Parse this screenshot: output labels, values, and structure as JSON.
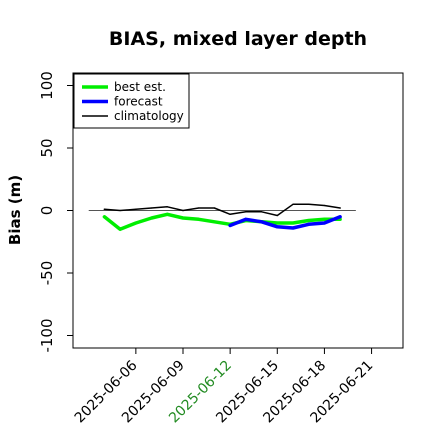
{
  "chart_data": {
    "type": "line",
    "title": "BIAS, mixed layer depth",
    "xlabel": "",
    "ylabel": "Bias (m)",
    "ylim": [
      -110,
      110
    ],
    "xlim": [
      "2025-06-02",
      "2025-06-23"
    ],
    "yticks": [
      -100,
      -50,
      0,
      50,
      100
    ],
    "yticklabels": [
      "-100",
      "-50",
      "0",
      "50",
      "100"
    ],
    "xticks": [
      "2025-06-06",
      "2025-06-09",
      "2025-06-12",
      "2025-06-15",
      "2025-06-18",
      "2025-06-21"
    ],
    "xticklabels": [
      "2025-06-06",
      "2025-06-09",
      "2025-06-12",
      "2025-06-15",
      "2025-06-18",
      "2025-06-21"
    ],
    "xtick_colors": [
      "#000000",
      "#000000",
      "#228b22",
      "#000000",
      "#000000",
      "#000000"
    ],
    "reference_line": 0,
    "grid": false,
    "legend": "top-left",
    "series": [
      {
        "name": "best est.",
        "color": "#00ee00",
        "x": [
          "2025-06-04",
          "2025-06-05",
          "2025-06-06",
          "2025-06-07",
          "2025-06-08",
          "2025-06-09",
          "2025-06-10",
          "2025-06-11",
          "2025-06-12",
          "2025-06-13",
          "2025-06-14",
          "2025-06-15",
          "2025-06-16",
          "2025-06-17",
          "2025-06-18",
          "2025-06-19"
        ],
        "values": [
          -5,
          -15,
          -10,
          -6,
          -3,
          -6,
          -7,
          -9,
          -11,
          -8,
          -9,
          -10,
          -10,
          -8,
          -7,
          -7
        ]
      },
      {
        "name": "forecast",
        "color": "#0000ff",
        "x": [
          "2025-06-12",
          "2025-06-13",
          "2025-06-14",
          "2025-06-15",
          "2025-06-16",
          "2025-06-17",
          "2025-06-18",
          "2025-06-19"
        ],
        "values": [
          -12,
          -7,
          -9,
          -13,
          -14,
          -11,
          -10,
          -5
        ]
      },
      {
        "name": "climatology",
        "color": "#000000",
        "x": [
          "2025-06-04",
          "2025-06-05",
          "2025-06-06",
          "2025-06-07",
          "2025-06-08",
          "2025-06-09",
          "2025-06-10",
          "2025-06-11",
          "2025-06-12",
          "2025-06-13",
          "2025-06-14",
          "2025-06-15",
          "2025-06-16",
          "2025-06-17",
          "2025-06-18",
          "2025-06-19"
        ],
        "values": [
          1,
          0,
          1,
          2,
          3,
          0,
          2,
          2,
          -3,
          -1,
          -1,
          -4,
          5,
          5,
          4,
          2
        ]
      }
    ]
  }
}
